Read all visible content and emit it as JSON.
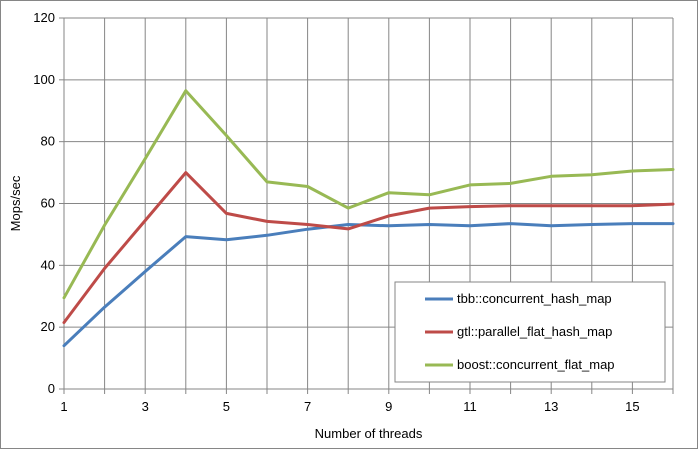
{
  "chart_data": {
    "type": "line",
    "title": "",
    "xlabel": "Number of threads",
    "ylabel": "Mops/sec",
    "xlim": [
      1,
      16
    ],
    "ylim": [
      0,
      120
    ],
    "x_ticks": [
      1,
      3,
      5,
      7,
      9,
      11,
      13,
      15
    ],
    "y_ticks": [
      0,
      20,
      40,
      60,
      80,
      100,
      120
    ],
    "grid": true,
    "legend_position": "bottom-right",
    "x": [
      1,
      2,
      3,
      4,
      5,
      6,
      7,
      8,
      9,
      10,
      11,
      12,
      13,
      14,
      15,
      16
    ],
    "series": [
      {
        "name": "tbb::concurrent_hash_map",
        "color": "#4A7EBB",
        "values": [
          14.0,
          26.5,
          38.0,
          49.3,
          48.3,
          49.7,
          51.7,
          53.2,
          52.8,
          53.2,
          52.8,
          53.5,
          52.8,
          53.2,
          53.5,
          53.5
        ]
      },
      {
        "name": "gtl::parallel_flat_hash_map",
        "color": "#BE4B48",
        "values": [
          21.5,
          39.0,
          54.5,
          70.0,
          56.8,
          54.2,
          53.2,
          51.8,
          56.0,
          58.5,
          59.0,
          59.3,
          59.3,
          59.3,
          59.3,
          59.8
        ]
      },
      {
        "name": "boost::concurrent_flat_map",
        "color": "#98B954",
        "values": [
          29.5,
          53.0,
          74.5,
          96.5,
          82.0,
          67.0,
          65.5,
          58.5,
          63.5,
          62.8,
          66.0,
          66.5,
          68.8,
          69.3,
          70.5,
          71.0
        ]
      }
    ]
  }
}
